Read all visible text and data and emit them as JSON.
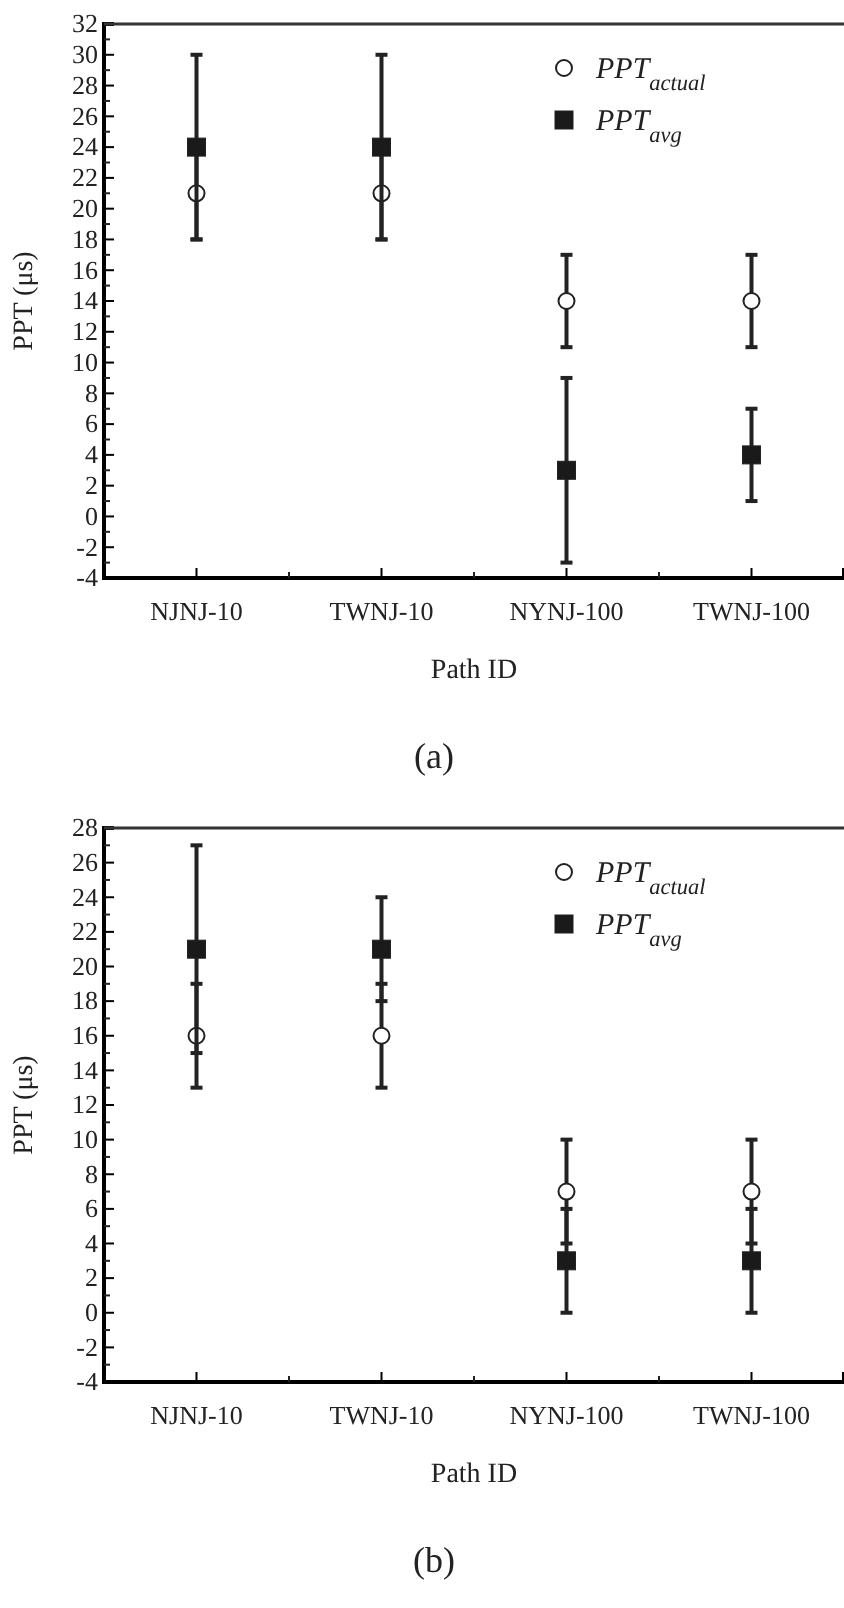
{
  "chart_data": [
    {
      "type": "scatter",
      "title": "(a)",
      "xlabel": "Path ID",
      "ylabel": "PPT (μs)",
      "categories": [
        "NJNJ-10",
        "TWNJ-10",
        "NYNJ-100",
        "TWNJ-100"
      ],
      "series": [
        {
          "name": "PPT$_{actual}$",
          "color": "#ffffff",
          "marker": "circle",
          "values": [
            21,
            21,
            14,
            14
          ],
          "errors": [
            3,
            3,
            3,
            3
          ]
        },
        {
          "name": "PPT$_{avg}$",
          "color": "#1a1a1a",
          "marker": "square",
          "values": [
            24,
            24,
            3,
            4
          ],
          "errors": [
            6,
            6,
            6,
            3
          ]
        }
      ],
      "ylim": [
        -4,
        32
      ],
      "yticks": [
        -4,
        -2,
        0,
        2,
        4,
        6,
        8,
        10,
        12,
        14,
        16,
        18,
        20,
        22,
        24,
        26,
        28,
        30,
        32
      ],
      "legend": "top right"
    },
    {
      "type": "scatter",
      "title": "(b)",
      "xlabel": "Path ID",
      "ylabel": "PPT (μs)",
      "categories": [
        "NJNJ-10",
        "TWNJ-10",
        "NYNJ-100",
        "TWNJ-100"
      ],
      "series": [
        {
          "name": "PPT$_{actual}$",
          "color": "#ffffff",
          "marker": "circle",
          "values": [
            16,
            16,
            7,
            7
          ],
          "errors": [
            3,
            3,
            3,
            3
          ]
        },
        {
          "name": "PPT$_{avg}$",
          "color": "#1a1a1a",
          "marker": "square",
          "values": [
            21,
            21,
            3,
            3
          ],
          "errors": [
            6,
            3,
            3,
            3
          ]
        }
      ],
      "ylim": [
        -4,
        28
      ],
      "yticks": [
        -4,
        -2,
        0,
        2,
        4,
        6,
        8,
        10,
        12,
        14,
        16,
        18,
        20,
        22,
        24,
        26,
        28
      ],
      "legend": "top right"
    }
  ]
}
